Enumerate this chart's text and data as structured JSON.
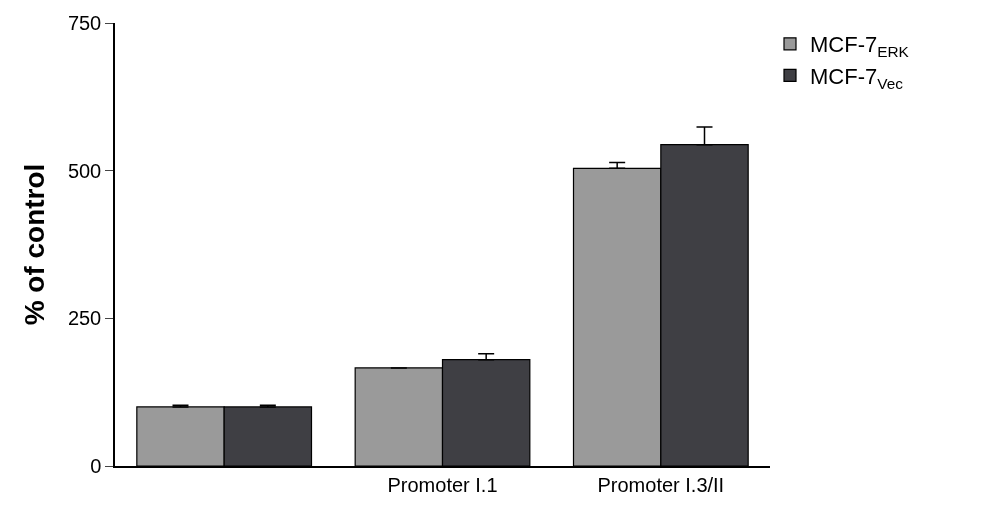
{
  "chart_data": {
    "type": "bar",
    "ylabel": "% of control",
    "categories": [
      null,
      "Promoter I.1",
      "Promoter I.3/II"
    ],
    "series": [
      {
        "name": "MCF-7$_{ERK}$",
        "color": "#9a9a9a",
        "values": [
          100,
          166,
          504
        ],
        "errors": [
          [
            100,
            103
          ],
          [
            166,
            166
          ],
          [
            504,
            514
          ]
        ]
      },
      {
        "name": "MCF-7$_{Vec}$",
        "color": "#3f3f44",
        "values": [
          100,
          180,
          544
        ],
        "errors": [
          [
            100,
            103
          ],
          [
            180,
            190
          ],
          [
            544,
            574
          ]
        ]
      }
    ],
    "ylim": [
      0,
      750
    ],
    "yticks": [
      0,
      250,
      500,
      750
    ],
    "legend": "top right"
  }
}
